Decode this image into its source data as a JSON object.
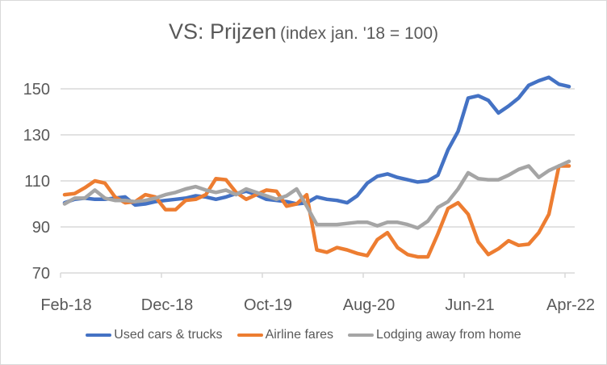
{
  "chart_data": {
    "type": "line",
    "title": "VS: Prijzen",
    "subtitle": "(index jan. '18 = 100)",
    "xlabel": "",
    "ylabel": "",
    "ylim": [
      70,
      160
    ],
    "yticks": [
      70,
      90,
      110,
      130,
      150
    ],
    "xtick_labels": [
      "Feb-18",
      "Dec-18",
      "Oct-19",
      "Aug-20",
      "Jun-21",
      "Apr-22"
    ],
    "xtick_indices": [
      0,
      10,
      20,
      30,
      40,
      50
    ],
    "grid": true,
    "legend_position": "bottom",
    "x": [
      "Feb-18",
      "Mar-18",
      "Apr-18",
      "May-18",
      "Jun-18",
      "Jul-18",
      "Aug-18",
      "Sep-18",
      "Oct-18",
      "Nov-18",
      "Dec-18",
      "Jan-19",
      "Feb-19",
      "Mar-19",
      "Apr-19",
      "May-19",
      "Jun-19",
      "Jul-19",
      "Aug-19",
      "Sep-19",
      "Oct-19",
      "Nov-19",
      "Dec-19",
      "Jan-20",
      "Feb-20",
      "Mar-20",
      "Apr-20",
      "May-20",
      "Jun-20",
      "Jul-20",
      "Aug-20",
      "Sep-20",
      "Oct-20",
      "Nov-20",
      "Dec-20",
      "Jan-21",
      "Feb-21",
      "Mar-21",
      "Apr-21",
      "May-21",
      "Jun-21",
      "Jul-21",
      "Aug-21",
      "Sep-21",
      "Oct-21",
      "Nov-21",
      "Dec-21",
      "Jan-22",
      "Feb-22",
      "Mar-22",
      "Apr-22"
    ],
    "series": [
      {
        "name": "Used cars & trucks",
        "color": "#4472c4",
        "values": [
          100.5,
          102,
          102.5,
          102,
          102,
          102.5,
          103,
          99.5,
          100,
          101,
          101.5,
          102,
          102.5,
          103.5,
          103,
          102,
          103,
          104.5,
          105.5,
          104,
          102,
          101.5,
          101,
          100,
          100.5,
          103,
          102,
          101.5,
          100.5,
          103.5,
          109,
          112,
          113,
          111.5,
          110.5,
          109.5,
          110,
          112.5,
          123.5,
          131.5,
          146,
          147,
          145,
          139.5,
          142.5,
          146,
          151.5,
          153.5,
          155,
          152,
          151
        ]
      },
      {
        "name": "Airline fares",
        "color": "#ed7d31",
        "values": [
          104,
          104.5,
          107,
          110,
          109,
          103,
          100.5,
          101,
          104,
          103,
          97.5,
          97.5,
          101.5,
          102,
          104,
          111,
          110.5,
          105,
          102,
          104,
          106,
          105.5,
          99,
          100,
          104,
          80,
          79,
          81,
          80,
          78.5,
          77.5,
          84.5,
          87.5,
          81,
          78,
          77,
          77,
          87,
          98,
          100.5,
          95.5,
          83.5,
          78,
          80.5,
          84,
          82,
          82.5,
          87.5,
          95.5,
          116.5,
          116.5
        ]
      },
      {
        "name": "Lodging away from home",
        "color": "#a5a5a5",
        "values": [
          100,
          102.5,
          102.5,
          106,
          102.5,
          101.5,
          101.5,
          101,
          101.5,
          102.5,
          104,
          105,
          106.5,
          107.5,
          106,
          105,
          106,
          104,
          106.5,
          105,
          103.5,
          102,
          103.5,
          106.5,
          99,
          91,
          91,
          91,
          91.5,
          92,
          92,
          90.5,
          92,
          92,
          91,
          89.5,
          92.5,
          98.5,
          101,
          106.5,
          113.5,
          111,
          110.5,
          110.5,
          112.5,
          115,
          116.5,
          111.5,
          114.5,
          116.5,
          118.5
        ]
      }
    ]
  }
}
